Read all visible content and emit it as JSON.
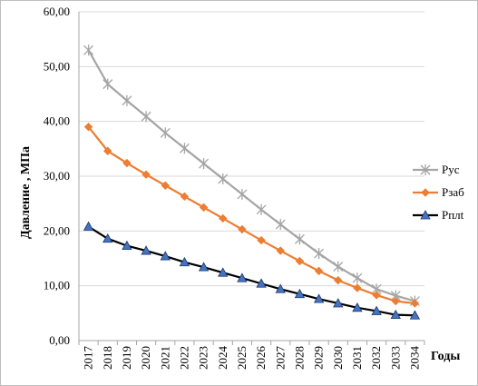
{
  "chart_data": {
    "type": "line",
    "title": "",
    "xlabel": "Годы",
    "ylabel": "Давление , МПа",
    "ylim": [
      0,
      60
    ],
    "ytick_labels": [
      "0,00",
      "10,00",
      "20,00",
      "30,00",
      "40,00",
      "50,00",
      "60,00"
    ],
    "ytick_values": [
      0,
      10,
      20,
      30,
      40,
      50,
      60
    ],
    "grid": "horizontal",
    "legend_position": "right",
    "categories": [
      "2017",
      "2018",
      "2019",
      "2020",
      "2021",
      "2022",
      "2023",
      "2024",
      "2025",
      "2026",
      "2027",
      "2028",
      "2029",
      "2030",
      "2031",
      "2032",
      "2033",
      "2034"
    ],
    "series": [
      {
        "name": "Руc",
        "color": "#a5a5a5",
        "marker": "star",
        "values": [
          53.0,
          46.8,
          43.8,
          40.9,
          37.9,
          35.1,
          32.3,
          29.5,
          26.7,
          23.9,
          21.2,
          18.5,
          15.9,
          13.5,
          11.4,
          9.4,
          8.2,
          7.2
        ]
      },
      {
        "name": "Рзаб",
        "color": "#ed7d31",
        "marker": "diamond",
        "values": [
          39.0,
          34.6,
          32.4,
          30.3,
          28.3,
          26.3,
          24.3,
          22.3,
          20.3,
          18.3,
          16.4,
          14.5,
          12.7,
          11.0,
          9.6,
          8.3,
          7.2,
          6.8
        ]
      },
      {
        "name": "Рплt",
        "color": "#000000",
        "marker_fill": "#4472c4",
        "marker": "triangle",
        "values": [
          20.8,
          18.6,
          17.3,
          16.4,
          15.4,
          14.3,
          13.4,
          12.4,
          11.4,
          10.4,
          9.4,
          8.5,
          7.6,
          6.8,
          6.0,
          5.4,
          4.7,
          4.6
        ]
      }
    ]
  }
}
